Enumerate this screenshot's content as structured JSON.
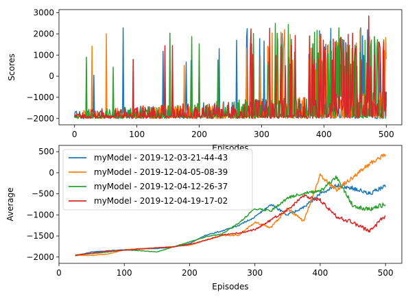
{
  "colors": {
    "series_1": "#1f77b4",
    "series_2": "#ff7f0e",
    "series_3": "#2ca02c",
    "series_4": "#d62728",
    "axes": "#000000",
    "background": "#ffffff"
  },
  "chart_data": [
    {
      "type": "line",
      "title": "",
      "xlabel": "Episodes",
      "ylabel": "Scores",
      "xlim": [
        -25,
        525
      ],
      "ylim": [
        -2300,
        3150
      ],
      "xticks": [
        0,
        100,
        200,
        300,
        400,
        500
      ],
      "yticks": [
        -2000,
        -1000,
        0,
        1000,
        2000,
        3000
      ],
      "grid": false,
      "legend": "none",
      "notes_spikes": [
        {
          "series": 0,
          "x": 31,
          "y": 50
        },
        {
          "series": 0,
          "x": 260,
          "y": 1700
        },
        {
          "series": 0,
          "x": 277,
          "y": 2250
        },
        {
          "series": 2,
          "x": 322,
          "y": 2500
        },
        {
          "series": 2,
          "x": 343,
          "y": 2450
        },
        {
          "series": 1,
          "x": 458,
          "y": 2200
        },
        {
          "series": 3,
          "x": 472,
          "y": 2850
        }
      ],
      "series": [
        {
          "values_range": [
            -2000,
            2850
          ],
          "x_range": [
            0,
            500
          ]
        },
        {
          "values_range": [
            -2000,
            2350
          ],
          "x_range": [
            0,
            500
          ]
        },
        {
          "values_range": [
            -2000,
            2500
          ],
          "x_range": [
            0,
            500
          ]
        },
        {
          "values_range": [
            -2000,
            2850
          ],
          "x_range": [
            0,
            500
          ]
        }
      ]
    },
    {
      "type": "line",
      "title": "",
      "xlabel": "Episodes",
      "ylabel": "Average",
      "xlim": [
        0,
        525
      ],
      "ylim": [
        -2150,
        650
      ],
      "xticks": [
        0,
        100,
        200,
        300,
        400,
        500
      ],
      "yticks": [
        -2000,
        -1500,
        -1000,
        -500,
        0,
        500
      ],
      "grid": false,
      "legend": "upper-left",
      "x": [
        25,
        50,
        75,
        100,
        125,
        150,
        175,
        200,
        225,
        250,
        275,
        300,
        325,
        350,
        375,
        400,
        425,
        450,
        475,
        500
      ],
      "series": [
        {
          "name": "myModel - 2019-12-03-21-44-43",
          "values": [
            -1970,
            -1880,
            -1850,
            -1830,
            -1800,
            -1800,
            -1760,
            -1680,
            -1480,
            -1380,
            -1250,
            -1050,
            -750,
            -1000,
            -820,
            -500,
            -300,
            -360,
            -500,
            -320
          ]
        },
        {
          "name": "myModel - 2019-12-04-05-08-39",
          "values": [
            -1960,
            -1960,
            -1930,
            -1830,
            -1800,
            -1780,
            -1750,
            -1720,
            -1600,
            -1490,
            -1480,
            -1180,
            -1300,
            -850,
            -1150,
            -60,
            -400,
            -100,
            200,
            450
          ]
        },
        {
          "name": "myModel - 2019-12-04-12-26-37",
          "values": [
            -1950,
            -1920,
            -1880,
            -1830,
            -1850,
            -1880,
            -1760,
            -1640,
            -1520,
            -1450,
            -1200,
            -850,
            -900,
            -600,
            -480,
            -450,
            -100,
            -780,
            -870,
            -750
          ]
        },
        {
          "name": "myModel - 2019-12-04-19-17-02",
          "values": [
            -1960,
            -1910,
            -1860,
            -1840,
            -1810,
            -1780,
            -1760,
            -1700,
            -1600,
            -1480,
            -1430,
            -1350,
            -1120,
            -880,
            -550,
            -650,
            -1040,
            -1180,
            -1380,
            -1020
          ]
        }
      ]
    }
  ]
}
